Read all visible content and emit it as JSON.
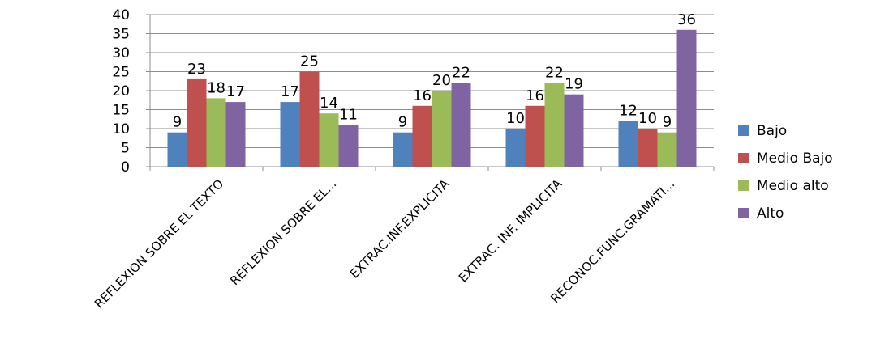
{
  "chart_data": {
    "type": "bar",
    "title": "",
    "xlabel": "",
    "ylabel": "",
    "ylim": [
      0,
      40
    ],
    "yticks": [
      0,
      5,
      10,
      15,
      20,
      25,
      30,
      35,
      40
    ],
    "grid": "horizontal major gridlines",
    "legend_position": "right",
    "categories": [
      "REFLEXION SOBRE EL TEXTO",
      "REFLEXION SOBRE EL...",
      "EXTRAC.INF.EXPLICITA",
      "EXTRAC. INF. IMPLICITA",
      "RECONOC.FUNC.GRAMATI..."
    ],
    "series": [
      {
        "name": "Bajo",
        "color": "#4F81BD",
        "values": [
          9,
          17,
          9,
          10,
          12
        ]
      },
      {
        "name": "Medio Bajo",
        "color": "#C0504D",
        "values": [
          23,
          25,
          16,
          16,
          10
        ]
      },
      {
        "name": "Medio alto",
        "color": "#9BBB59",
        "values": [
          18,
          14,
          20,
          22,
          9
        ]
      },
      {
        "name": "Alto",
        "color": "#8064A2",
        "values": [
          17,
          11,
          22,
          19,
          36
        ]
      }
    ]
  }
}
